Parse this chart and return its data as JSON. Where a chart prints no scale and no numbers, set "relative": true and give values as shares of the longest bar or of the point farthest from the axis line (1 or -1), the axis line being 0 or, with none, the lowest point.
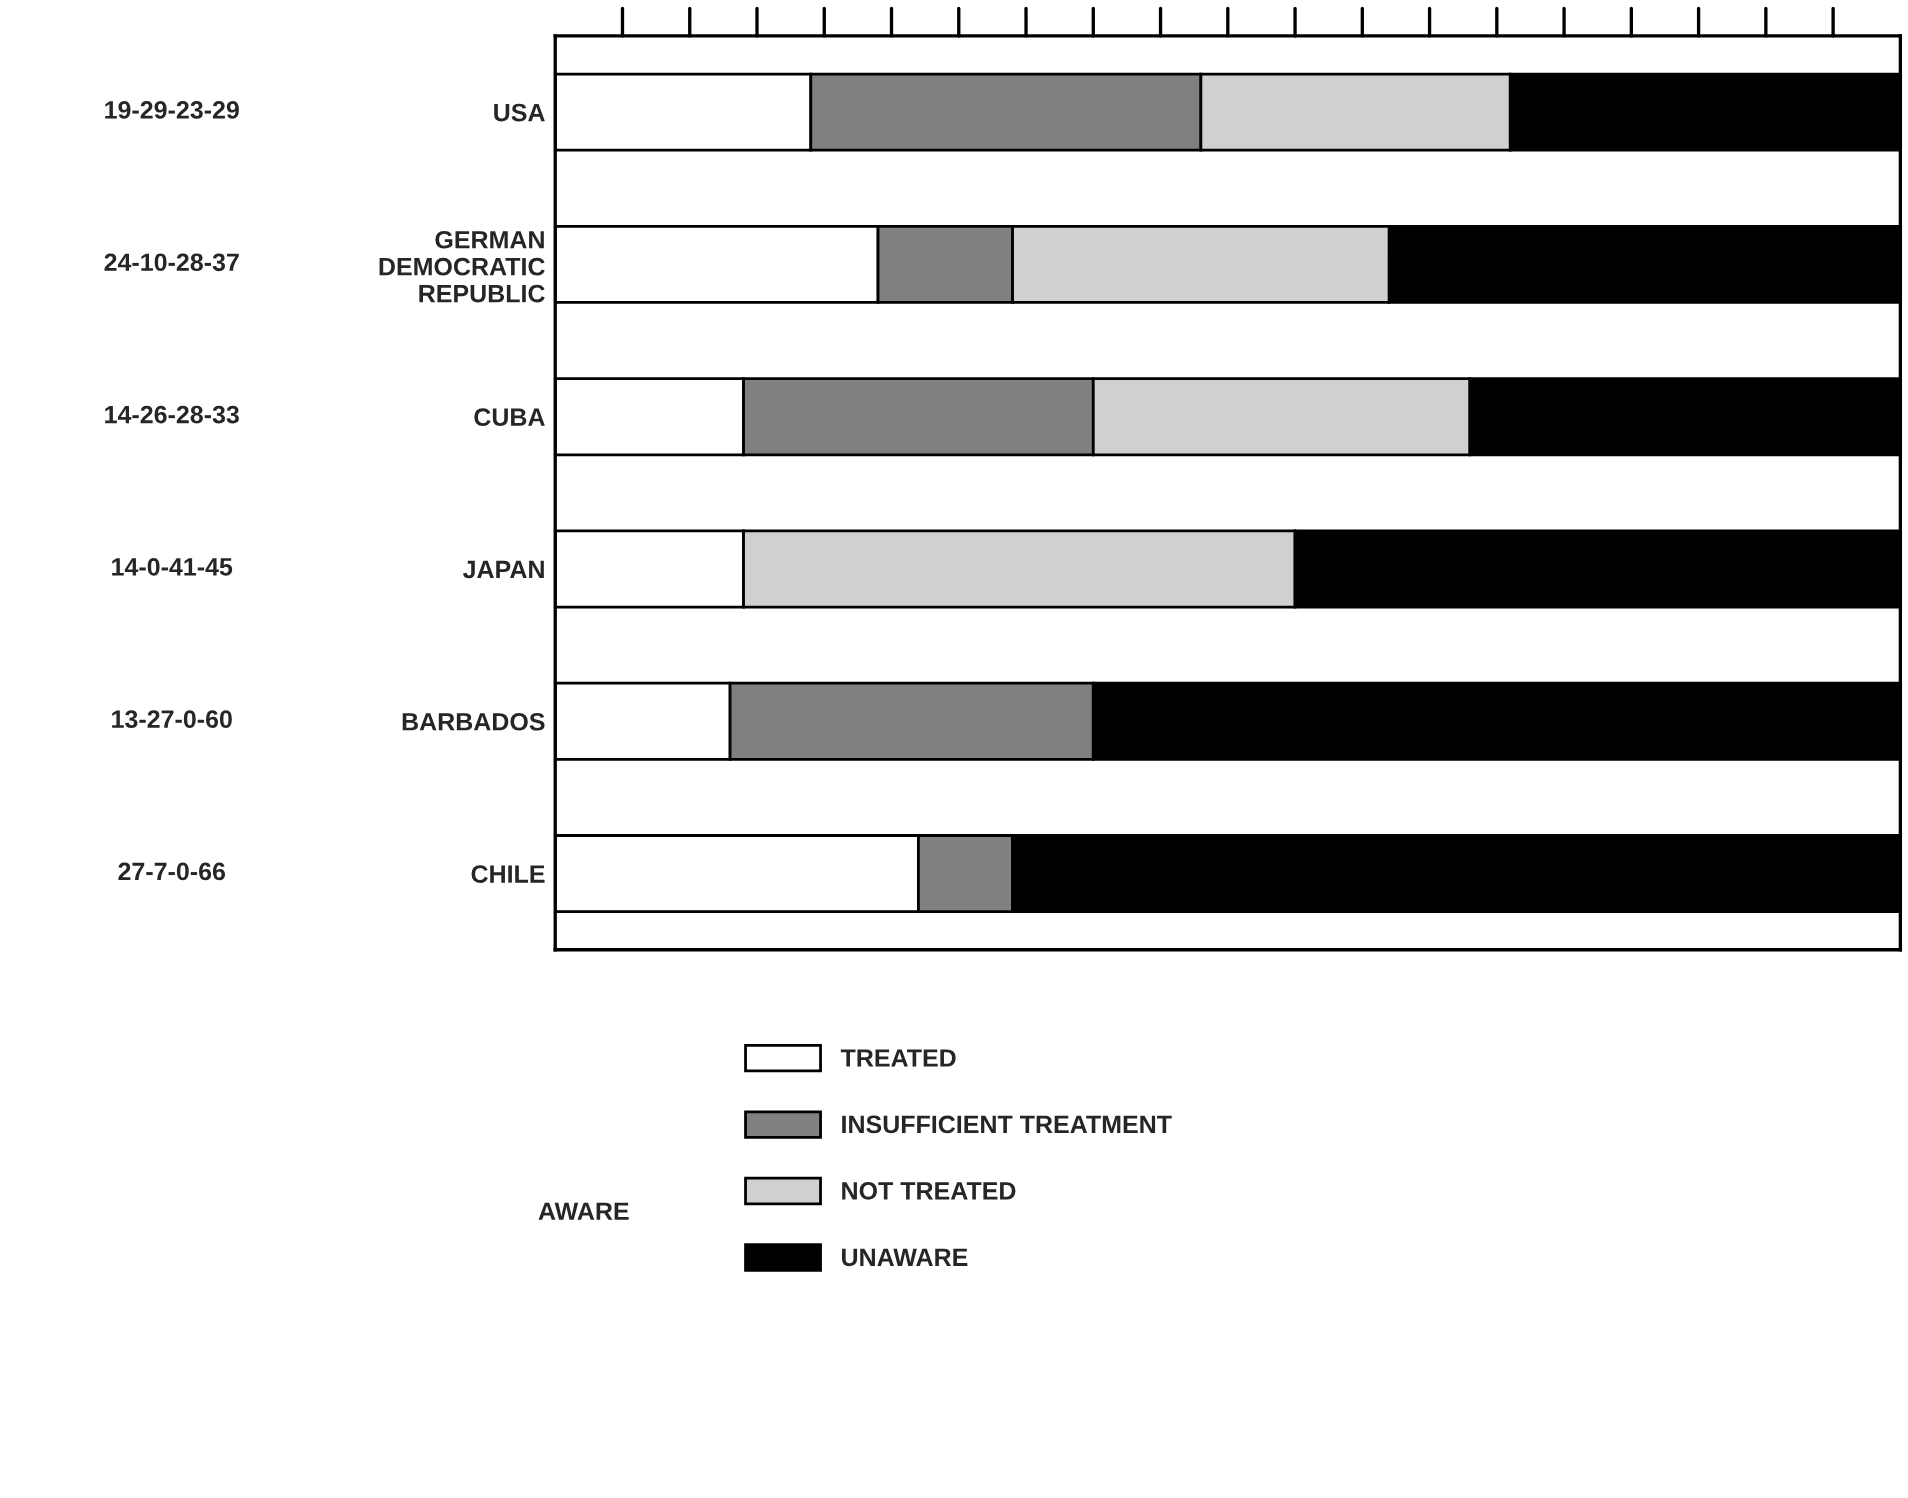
{
  "chart_data": {
    "type": "bar",
    "orientation": "horizontal",
    "stacked": true,
    "categories": [
      "USA",
      "GERMAN\nDEMOCRATIC\nREPUBLIC",
      "CUBA",
      "JAPAN",
      "BARBADOS",
      "CHILE"
    ],
    "series": [
      {
        "name": "TREATED",
        "color": "#ffffff",
        "values": [
          0.19,
          0.24,
          0.14,
          0.14,
          0.13,
          0.27
        ]
      },
      {
        "name": "INSUFFICIENT TREATMENT",
        "color": "#808080",
        "values": [
          0.29,
          0.1,
          0.26,
          0,
          0.27,
          0.07
        ]
      },
      {
        "name": "NOT TREATED",
        "color": "#d0d0d0",
        "values": [
          0.23,
          0.28,
          0.28,
          0.41,
          0,
          0
        ]
      },
      {
        "name": "UNAWARE",
        "color": "#000000",
        "values": [
          0.29,
          0.38,
          0.32,
          0.45,
          0.6,
          0.66
        ]
      }
    ],
    "relative": true,
    "tick_labels": "y",
    "legend": "bottom",
    "annotations": [
      "19-29-23-29",
      "24-10-28-37",
      "14-26-28-33",
      "14-0-41-45",
      "13-27-0-60",
      "27-7-0-66",
      "AWARE"
    ]
  }
}
